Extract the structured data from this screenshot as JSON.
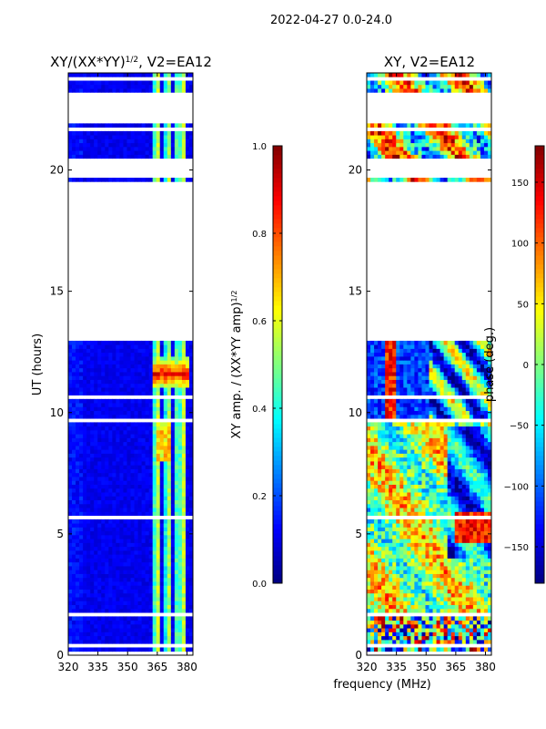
{
  "suptitle": "2022-04-27 0.0-24.0",
  "colors": {
    "masked": "#ffffff",
    "frame": "#000000"
  },
  "chart_data": [
    {
      "type": "heatmap",
      "title_main": "XY/(XX*YY)",
      "title_exp": "1/2",
      "title_tail": ", V2=EA12",
      "xlabel": "frequency (MHz)",
      "ylabel": "UT (hours)",
      "xlim": [
        320,
        383
      ],
      "ylim": [
        0,
        24
      ],
      "xticks": [
        320,
        335,
        350,
        365,
        380
      ],
      "xtick_labels": [
        "320",
        "335",
        "350",
        "365",
        "380"
      ],
      "yticks": [
        0,
        5,
        10,
        15,
        20
      ],
      "ytick_labels": [
        "0",
        "5",
        "10",
        "15",
        "20"
      ],
      "colorbar": {
        "label_main": "XY amp. / (XX*YY amp)",
        "label_exp": "1/2",
        "vmin": 0.0,
        "vmax": 1.0,
        "ticks": [
          0.0,
          0.2,
          0.4,
          0.6,
          0.8,
          1.0
        ],
        "tick_labels": [
          "0.0",
          "0.2",
          "0.4",
          "0.6",
          "0.8",
          "1.0"
        ]
      }
    },
    {
      "type": "heatmap",
      "title_main": "XY",
      "title_exp": "",
      "title_tail": ", V2=EA12",
      "xlabel": "frequency (MHz)",
      "ylabel": "",
      "xlim": [
        320,
        383
      ],
      "ylim": [
        0,
        24
      ],
      "xticks": [
        320,
        335,
        350,
        365,
        380
      ],
      "xtick_labels": [
        "320",
        "335",
        "350",
        "365",
        "380"
      ],
      "yticks": [
        0,
        5,
        10,
        15,
        20
      ],
      "ytick_labels": [
        "0",
        "5",
        "10",
        "15",
        "20"
      ],
      "colorbar": {
        "label_main": "phase (deg.)",
        "label_exp": "",
        "vmin": -180,
        "vmax": 180,
        "ticks": [
          -150,
          -100,
          -50,
          0,
          50,
          100,
          150
        ],
        "tick_labels": [
          "−150",
          "−100",
          "−50",
          "0",
          "50",
          "100",
          "150"
        ]
      }
    }
  ],
  "data_gaps_hours": [
    [
      0.05,
      0.15
    ],
    [
      0.35,
      0.45
    ],
    [
      1.55,
      1.75
    ],
    [
      5.55,
      5.7
    ],
    [
      9.6,
      9.8
    ],
    [
      10.6,
      10.75
    ],
    [
      10.85,
      10.95
    ],
    [
      12.9,
      19.5
    ],
    [
      19.65,
      20.4
    ],
    [
      21.65,
      21.8
    ],
    [
      21.95,
      23.2
    ],
    [
      23.45,
      23.55
    ],
    [
      23.75,
      23.8
    ]
  ],
  "amp_channel_bands_MHz": [
    [
      363,
      367
    ],
    [
      369,
      372
    ],
    [
      373,
      375
    ],
    [
      376,
      380
    ]
  ],
  "shared_xlabel": "frequency (MHz)"
}
